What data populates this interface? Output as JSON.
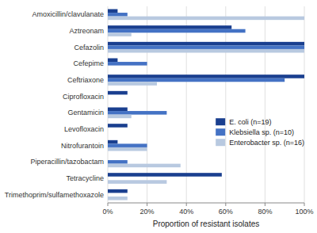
{
  "chart_data": {
    "type": "bar",
    "orientation": "horizontal",
    "categories": [
      "Trimethoprim/sulfamethoxazole",
      "Tetracycline",
      "Piperacillin/tazobactam",
      "Nitrofurantoin",
      "Levofloxacin",
      "Gentamicin",
      "Ciprofloxacin",
      "Ceftriaxone",
      "Cefepime",
      "Cefazolin",
      "Aztreonam",
      "Amoxicillin/clavulanate"
    ],
    "series": [
      {
        "name": "E. coli (n=19)",
        "color": "#1a3f8f",
        "values": [
          10,
          58,
          0,
          5,
          10,
          10,
          10,
          100,
          5,
          100,
          63,
          5
        ]
      },
      {
        "name": "Klebsiella sp. (n=10)",
        "color": "#4472c4",
        "values": [
          0,
          0,
          10,
          20,
          0,
          30,
          0,
          90,
          20,
          100,
          70,
          10
        ]
      },
      {
        "name": "Enterobacter sp. (n=16)",
        "color": "#b8c9e0",
        "values": [
          10,
          30,
          37,
          20,
          0,
          12,
          0,
          25,
          0,
          100,
          12,
          100
        ]
      }
    ],
    "xlabel": "Proportion of resistant isolates",
    "xlim": [
      0,
      100
    ],
    "xticks": [
      {
        "value": 0,
        "label": "0%"
      },
      {
        "value": 20,
        "label": "20%"
      },
      {
        "value": 40,
        "label": "40%"
      },
      {
        "value": 60,
        "label": "60%"
      },
      {
        "value": 80,
        "label": "80%"
      },
      {
        "value": 100,
        "label": "100%"
      }
    ],
    "grid": true,
    "legend": "right"
  }
}
